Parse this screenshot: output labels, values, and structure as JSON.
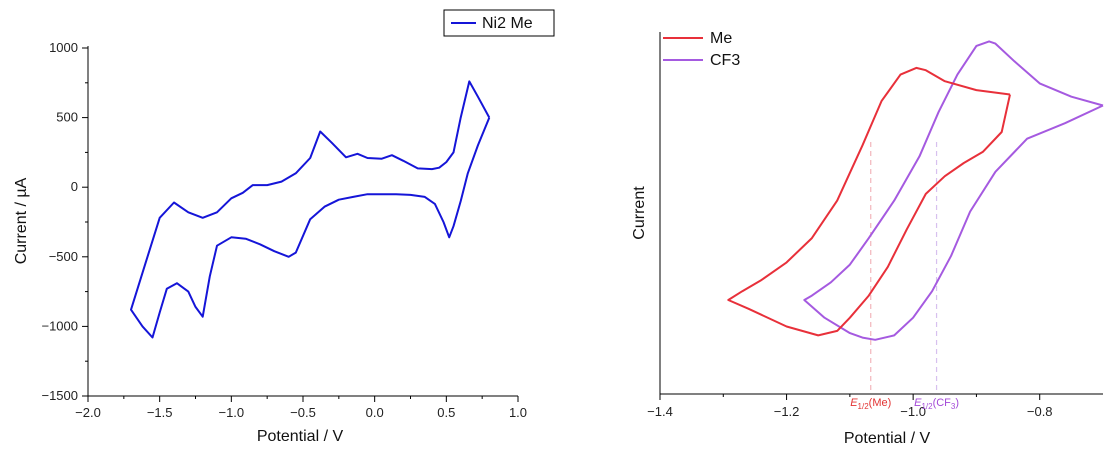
{
  "chart_data": [
    {
      "type": "line",
      "xlabel": "Potential / V",
      "ylabel": "Current / µA",
      "xlim": [
        -2.0,
        1.0
      ],
      "ylim": [
        -1500,
        1000
      ],
      "xticks": [
        -2.0,
        -1.5,
        -1.0,
        -0.5,
        0.0,
        0.5,
        1.0
      ],
      "xtick_labels": [
        "−2.0",
        "−1.5",
        "−1.0",
        "−0.5",
        "0.0",
        "0.5",
        "1.0"
      ],
      "yticks": [
        -1500,
        -1000,
        -500,
        0,
        500,
        1000
      ],
      "ytick_labels": [
        "−1500",
        "−1000",
        "−500",
        "0",
        "500",
        "1000"
      ],
      "grid": false,
      "legend": "top-right",
      "series": [
        {
          "name": "Ni2 Me",
          "color": "#1515d8",
          "x": [
            0.8,
            0.72,
            0.66,
            0.6,
            0.55,
            0.5,
            0.45,
            0.4,
            0.3,
            0.2,
            0.12,
            0.05,
            -0.05,
            -0.12,
            -0.2,
            -0.3,
            -0.38,
            -0.45,
            -0.55,
            -0.65,
            -0.75,
            -0.85,
            -0.92,
            -1.0,
            -1.1,
            -1.2,
            -1.3,
            -1.4,
            -1.5,
            -1.6,
            -1.7,
            -1.62,
            -1.55,
            -1.5,
            -1.45,
            -1.38,
            -1.3,
            -1.25,
            -1.2,
            -1.15,
            -1.1,
            -1.0,
            -0.9,
            -0.8,
            -0.7,
            -0.6,
            -0.55,
            -0.45,
            -0.35,
            -0.25,
            -0.15,
            -0.05,
            0.05,
            0.15,
            0.25,
            0.35,
            0.42,
            0.48,
            0.52,
            0.55,
            0.6,
            0.65,
            0.72,
            0.8
          ],
          "y": [
            500,
            650,
            760,
            500,
            250,
            180,
            140,
            130,
            135,
            190,
            230,
            205,
            210,
            240,
            215,
            320,
            400,
            210,
            100,
            40,
            15,
            15,
            -40,
            -80,
            -180,
            -220,
            -180,
            -110,
            -220,
            -550,
            -880,
            -1000,
            -1080,
            -900,
            -730,
            -690,
            -750,
            -860,
            -930,
            -640,
            -420,
            -360,
            -370,
            -410,
            -460,
            -500,
            -470,
            -230,
            -140,
            -90,
            -70,
            -50,
            -50,
            -50,
            -55,
            -70,
            -120,
            -250,
            -360,
            -280,
            -100,
            100,
            300,
            500
          ]
        }
      ]
    },
    {
      "type": "line",
      "xlabel": "Potential / V",
      "ylabel": "Current",
      "xlim": [
        -1.4,
        -0.7
      ],
      "xticks": [
        -1.4,
        -1.2,
        -1.0,
        -0.8
      ],
      "xtick_labels": [
        "−1.4",
        "−1.2",
        "−1.0",
        "−0.8"
      ],
      "grid": false,
      "legend": "top-left",
      "annotations": [
        {
          "x": -1.067,
          "color": "#f2b5bb",
          "label_main": "E",
          "label_sub": "1/2",
          "label_rest": "(Me)",
          "label_color": "#e23434"
        },
        {
          "x": -0.963,
          "color": "#d7c0ef",
          "label_main": "E",
          "label_sub": "1/2",
          "label_rest": "(CF",
          "label_sub2": "3",
          "label_end": ")",
          "label_color": "#a44ad8"
        }
      ],
      "series": [
        {
          "name": "Me",
          "color": "#e8303a",
          "x": [
            -0.847,
            -0.9,
            -0.95,
            -0.98,
            -0.995,
            -1.02,
            -1.05,
            -1.08,
            -1.12,
            -1.16,
            -1.2,
            -1.24,
            -1.27,
            -1.292,
            -1.26,
            -1.2,
            -1.15,
            -1.12,
            -1.1,
            -1.07,
            -1.04,
            -1.01,
            -0.98,
            -0.95,
            -0.92,
            -0.89,
            -0.86,
            -0.847
          ],
          "y": [
            0.93,
            0.95,
            0.99,
            1.04,
            1.05,
            1.02,
            0.9,
            0.7,
            0.45,
            0.28,
            0.17,
            0.09,
            0.04,
            0.0,
            -0.04,
            -0.12,
            -0.16,
            -0.14,
            -0.08,
            0.02,
            0.15,
            0.32,
            0.48,
            0.56,
            0.62,
            0.67,
            0.76,
            0.93
          ]
        },
        {
          "name": "CF3",
          "color": "#a55ae0",
          "x": [
            -0.7,
            -0.75,
            -0.8,
            -0.84,
            -0.87,
            -0.88,
            -0.9,
            -0.93,
            -0.96,
            -0.99,
            -1.03,
            -1.07,
            -1.1,
            -1.13,
            -1.16,
            -1.172,
            -1.14,
            -1.1,
            -1.08,
            -1.06,
            -1.03,
            -1.0,
            -0.97,
            -0.94,
            -0.91,
            -0.87,
            -0.82,
            -0.76,
            -0.7
          ],
          "y": [
            0.88,
            0.92,
            0.98,
            1.08,
            1.16,
            1.17,
            1.15,
            1.02,
            0.85,
            0.65,
            0.45,
            0.28,
            0.16,
            0.08,
            0.02,
            0.0,
            -0.08,
            -0.15,
            -0.17,
            -0.18,
            -0.16,
            -0.08,
            0.04,
            0.2,
            0.4,
            0.58,
            0.73,
            0.8,
            0.88
          ]
        }
      ]
    }
  ]
}
